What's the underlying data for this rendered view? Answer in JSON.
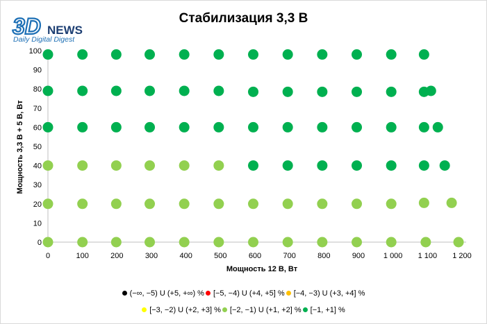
{
  "logo": {
    "mark": "3D",
    "word": "NEWS",
    "tagline": "Daily Digital Digest"
  },
  "chart_data": {
    "type": "scatter",
    "title": "Стабилизация 3,3 В",
    "xlabel": "Мощность  12 В, Вт",
    "ylabel": "Мощность  3,3 В + 5 В, Вт",
    "xlim": [
      0,
      1200
    ],
    "ylim": [
      0,
      100
    ],
    "x_ticks": [
      0,
      100,
      200,
      300,
      400,
      500,
      600,
      700,
      800,
      900,
      1000,
      1100,
      1200
    ],
    "x_tick_labels": [
      "0",
      "100",
      "200",
      "300",
      "400",
      "500",
      "600",
      "700",
      "800",
      "900",
      "1 000",
      "1 100",
      "1 200"
    ],
    "y_ticks": [
      0,
      10,
      20,
      30,
      40,
      50,
      60,
      70,
      80,
      90,
      100
    ],
    "y_tick_labels": [
      "0",
      "10",
      "20",
      "30",
      "40",
      "50",
      "60",
      "70",
      "80",
      "90",
      "100"
    ],
    "grid": false,
    "legend_position": "bottom",
    "series": [
      {
        "name": "(−∞, −5) U (+5, +∞) %",
        "color": "#000000",
        "points": []
      },
      {
        "name": "[−5, −4) U (+4, +5] %",
        "color": "#ff0000",
        "points": []
      },
      {
        "name": "[−4, −3) U (+3, +4] %",
        "color": "#ffc000",
        "points": []
      },
      {
        "name": "[−3, −2) U (+2, +3] %",
        "color": "#ffff00",
        "points": []
      },
      {
        "name": "[−2, −1) U (+1, +2] %",
        "color": "#92d050",
        "points": [
          [
            0,
            0
          ],
          [
            100,
            0
          ],
          [
            198,
            0
          ],
          [
            295,
            0
          ],
          [
            395,
            0
          ],
          [
            495,
            0
          ],
          [
            595,
            0
          ],
          [
            695,
            0
          ],
          [
            795,
            0
          ],
          [
            895,
            0
          ],
          [
            995,
            0
          ],
          [
            1095,
            0
          ],
          [
            1190,
            0
          ],
          [
            0,
            20
          ],
          [
            100,
            20
          ],
          [
            198,
            20
          ],
          [
            295,
            20
          ],
          [
            395,
            20
          ],
          [
            495,
            20
          ],
          [
            595,
            20
          ],
          [
            695,
            20
          ],
          [
            795,
            20
          ],
          [
            895,
            20
          ],
          [
            995,
            20
          ],
          [
            1090,
            20.5
          ],
          [
            1170,
            20.5
          ],
          [
            0,
            40
          ],
          [
            100,
            40
          ],
          [
            198,
            40
          ],
          [
            295,
            40
          ],
          [
            395,
            40
          ],
          [
            495,
            40
          ]
        ]
      },
      {
        "name": "[−1, +1] %",
        "color": "#00b050",
        "points": [
          [
            595,
            40
          ],
          [
            695,
            40
          ],
          [
            795,
            40
          ],
          [
            895,
            40
          ],
          [
            995,
            40
          ],
          [
            1090,
            40
          ],
          [
            1150,
            40
          ],
          [
            0,
            60
          ],
          [
            100,
            60
          ],
          [
            198,
            60
          ],
          [
            295,
            60
          ],
          [
            395,
            60
          ],
          [
            495,
            60
          ],
          [
            595,
            60
          ],
          [
            695,
            60
          ],
          [
            795,
            60
          ],
          [
            895,
            60
          ],
          [
            995,
            60
          ],
          [
            1090,
            60
          ],
          [
            1130,
            60
          ],
          [
            0,
            79
          ],
          [
            100,
            79
          ],
          [
            198,
            79
          ],
          [
            295,
            79
          ],
          [
            395,
            79
          ],
          [
            495,
            79
          ],
          [
            595,
            78.5
          ],
          [
            695,
            78.5
          ],
          [
            795,
            78.5
          ],
          [
            895,
            78.5
          ],
          [
            995,
            78.5
          ],
          [
            1090,
            78.5
          ],
          [
            1110,
            79
          ],
          [
            0,
            98
          ],
          [
            100,
            98
          ],
          [
            198,
            98
          ],
          [
            295,
            98
          ],
          [
            395,
            98
          ],
          [
            495,
            98
          ],
          [
            595,
            98
          ],
          [
            695,
            98
          ],
          [
            795,
            98
          ],
          [
            895,
            98
          ],
          [
            995,
            98
          ],
          [
            1090,
            98
          ]
        ]
      }
    ]
  }
}
